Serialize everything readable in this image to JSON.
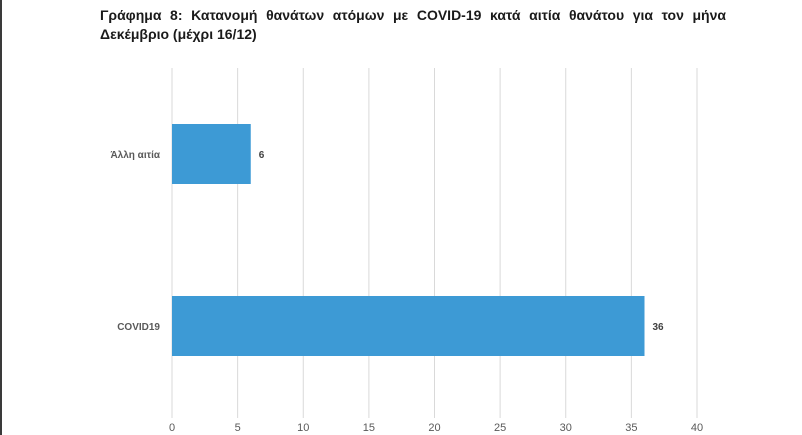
{
  "chart_data": {
    "type": "bar",
    "orientation": "horizontal",
    "title": "Γράφημα 8: Κατανομή θανάτων ατόμων με COVID-19 κατά αιτία θανάτου για τον μήνα Δεκέμβριο (μέχρι 16/12)",
    "categories": [
      "Άλλη αιτία",
      "COVID19"
    ],
    "values": [
      6,
      36
    ],
    "data_labels": [
      "6",
      "36"
    ],
    "xlim": [
      0,
      40
    ],
    "x_ticks": [
      0,
      5,
      10,
      15,
      20,
      25,
      30,
      35,
      40
    ],
    "grid": "vertical",
    "legend": "none",
    "bar_color": "#3d9ad5"
  }
}
